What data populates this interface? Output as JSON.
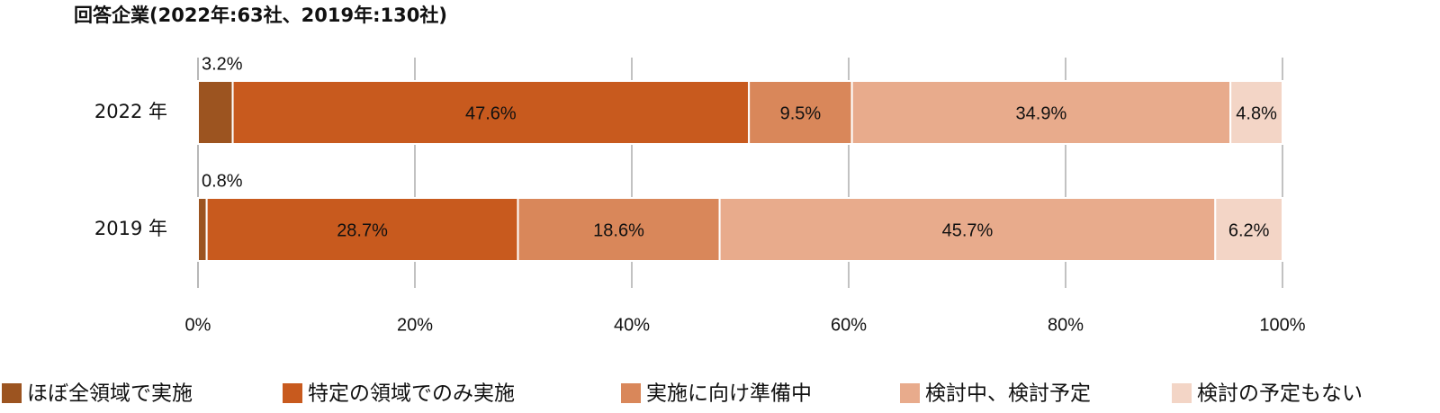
{
  "chart_data": {
    "type": "stacked-bar-horizontal",
    "title": "回答企業(2022年:63社、2019年:130社)",
    "categories": [
      "2022 年",
      "2019 年"
    ],
    "series": [
      {
        "name": "ほぼ全領域で実施",
        "color": "#9c5420",
        "values": [
          3.2,
          0.8
        ],
        "value_labels": [
          "3.2%",
          "0.8%"
        ]
      },
      {
        "name": "特定の領域でのみ実施",
        "color": "#c85a1e",
        "values": [
          47.6,
          28.7
        ],
        "value_labels": [
          "47.6%",
          "28.7%"
        ]
      },
      {
        "name": "実施に向け準備中",
        "color": "#d9875a",
        "values": [
          9.5,
          18.6
        ],
        "value_labels": [
          "9.5%",
          "18.6%"
        ]
      },
      {
        "name": "検討中、検討予定",
        "color": "#e8ab8c",
        "values": [
          34.9,
          45.7
        ],
        "value_labels": [
          "34.9%",
          "45.7%"
        ]
      },
      {
        "name": "検討の予定もない",
        "color": "#f3d5c6",
        "values": [
          4.8,
          6.2
        ],
        "value_labels": [
          "4.8%",
          "6.2%"
        ]
      }
    ],
    "xlim": [
      0,
      100
    ],
    "xticks": [
      {
        "value": 0,
        "label": "0%"
      },
      {
        "value": 20,
        "label": "20%"
      },
      {
        "value": 40,
        "label": "40%"
      },
      {
        "value": 60,
        "label": "60%"
      },
      {
        "value": 80,
        "label": "80%"
      },
      {
        "value": 100,
        "label": "100%"
      }
    ],
    "grid": true,
    "legend": "bottom"
  }
}
